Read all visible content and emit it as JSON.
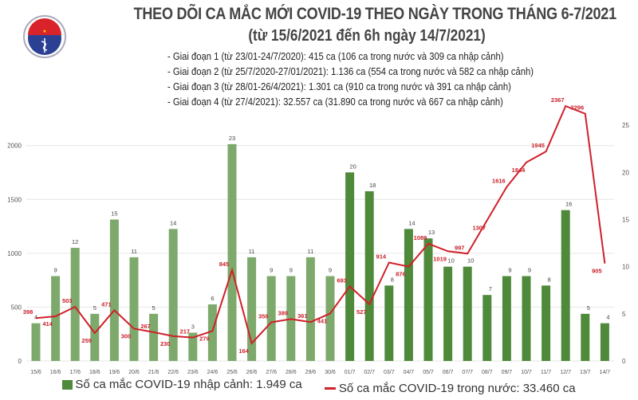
{
  "logo": {
    "text_top": "BỘ Y TẾ",
    "text_bottom": "MINISTRY OF HEALTH"
  },
  "title": "THEO DÕI CA MẮC MỚI COVID-19 THEO NGÀY TRONG THÁNG 6-7/2021",
  "subtitle": "(từ 15/6/2021 đến 6h ngày 14/7/2021)",
  "phases": [
    "- Giai đoạn 1 (từ 23/01-24/7/2020): 415 ca (106 ca trong nước và 309 ca nhập cảnh)",
    "- Giai đoạn 2 (từ 25/7/2020-27/01/2021): 1.136 ca (554 ca trong nước và 582 ca nhập cảnh)",
    "- Giai đoạn 3 (từ 28/01-26/4/2021): 1.301 ca (910 ca trong nước và 391 ca nhập cảnh)",
    "- Giai đoạn 4 (từ 27/4/2021): 32.557 ca (31.890 ca trong nước và 667 ca nhập cảnh)"
  ],
  "legend": {
    "bar": "Số ca mắc COVID-19 nhập cảnh: 1.949 ca",
    "line": "Số ca mắc COVID-19 trong nước: 33.460 ca"
  },
  "chart_data": {
    "type": "bar+line",
    "categories": [
      "15/6",
      "16/6",
      "17/6",
      "18/6",
      "19/6",
      "20/6",
      "21/6",
      "22/6",
      "23/6",
      "24/6",
      "25/6",
      "26/6",
      "27/6",
      "28/6",
      "29/6",
      "30/6",
      "01/7",
      "02/7",
      "03/7",
      "04/7",
      "05/7",
      "06/7",
      "07/7",
      "08/7",
      "09/7",
      "10/7",
      "11/7",
      "12/7",
      "13/7",
      "14/7"
    ],
    "series": [
      {
        "name": "Số ca mắc COVID-19 nhập cảnh: 1.949 ca",
        "type": "bar",
        "axis": "right",
        "values": [
          4,
          9,
          12,
          5,
          15,
          11,
          5,
          14,
          3,
          6,
          23,
          11,
          9,
          9,
          11,
          9,
          20,
          18,
          8,
          14,
          13,
          10,
          10,
          7,
          9,
          9,
          8,
          16,
          5,
          4
        ]
      },
      {
        "name": "Số ca mắc COVID-19 trong nước: 33.460 ca",
        "type": "line",
        "axis": "left",
        "values": [
          398,
          414,
          503,
          259,
          471,
          300,
          267,
          230,
          217,
          279,
          845,
          164,
          359,
          389,
          361,
          441,
          693,
          527,
          914,
          876,
          1089,
          1019,
          997,
          1307,
          1616,
          1844,
          1945,
          2367,
          2296,
          905
        ]
      }
    ],
    "left_axis": {
      "ticks": [
        0,
        500,
        1000,
        1500,
        2000
      ],
      "range": [
        0,
        2390
      ]
    },
    "right_axis": {
      "ticks": [
        0,
        5,
        10,
        15,
        20,
        25
      ],
      "range": [
        0,
        27.3
      ]
    },
    "grid": true,
    "legend_position": "bottom",
    "colors": {
      "bar_june": "#7daa6c",
      "bar_july": "#4e8a3a",
      "line": "#d0202a",
      "line_label": "#c8202a",
      "bar_label": "#444444"
    }
  }
}
